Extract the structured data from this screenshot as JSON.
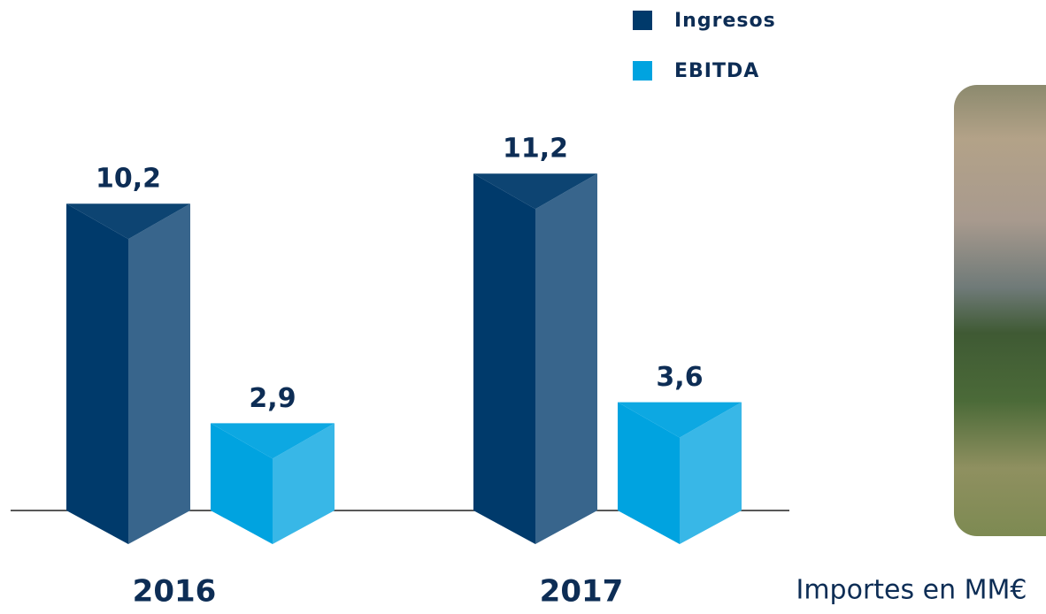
{
  "chart_data": {
    "type": "bar3d",
    "categories": [
      "2016",
      "2017"
    ],
    "series": [
      {
        "name": "Ingresos",
        "color": "#003a6b",
        "values": [
          10.2,
          11.2
        ],
        "value_labels": [
          "10,2",
          "11,2"
        ]
      },
      {
        "name": "EBITDA",
        "color": "#00a3e0",
        "values": [
          2.9,
          3.6
        ],
        "value_labels": [
          "2,9",
          "3,6"
        ]
      }
    ],
    "note": "Importes en MM€"
  }
}
